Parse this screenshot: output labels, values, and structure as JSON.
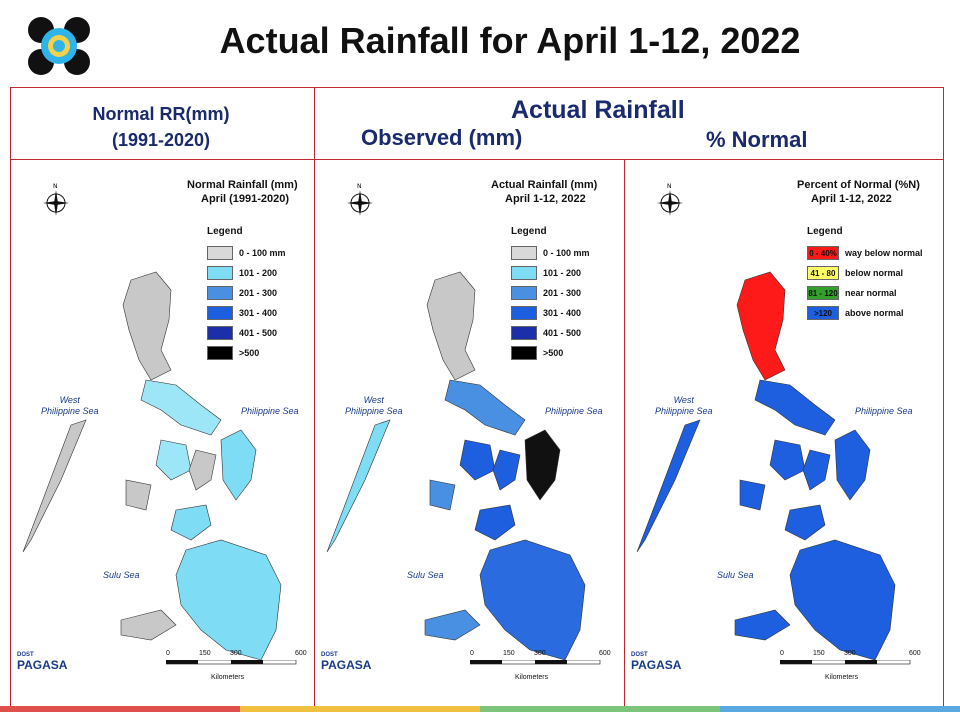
{
  "title": "Actual Rainfall for April 1-12, 2022",
  "headers": {
    "normal_line1": "Normal RR(mm)",
    "normal_line2": "(1991-2020)",
    "actual": "Actual Rainfall",
    "observed": "Observed (mm)",
    "percent": "% Normal"
  },
  "panels": [
    {
      "title_line1": "Normal Rainfall (mm)",
      "title_line2": "April (1991-2020)",
      "legend_title": "Legend",
      "legend": [
        {
          "label": "0 - 100 mm",
          "color": "#d9d9d9"
        },
        {
          "label": "101 - 200",
          "color": "#7fdcf5"
        },
        {
          "label": "201 - 300",
          "color": "#4a90e2"
        },
        {
          "label": "301 - 400",
          "color": "#1e5fe0"
        },
        {
          "label": "401 - 500",
          "color": "#1a2fa8"
        },
        {
          "label": ">500",
          "color": "#000000"
        }
      ],
      "sea_west": "West\nPhilippine Sea",
      "sea_east": "Philippine Sea",
      "sea_south": "Sulu Sea"
    },
    {
      "title_line1": "Actual Rainfall (mm)",
      "title_line2": "April 1-12, 2022",
      "legend_title": "Legend",
      "legend": [
        {
          "label": "0 - 100 mm",
          "color": "#d9d9d9"
        },
        {
          "label": "101 - 200",
          "color": "#7fdcf5"
        },
        {
          "label": "201 - 300",
          "color": "#4a90e2"
        },
        {
          "label": "301 - 400",
          "color": "#1e5fe0"
        },
        {
          "label": "401 - 500",
          "color": "#1a2fa8"
        },
        {
          "label": ">500",
          "color": "#000000"
        }
      ],
      "sea_west": "West\nPhilippine Sea",
      "sea_east": "Philippine Sea",
      "sea_south": "Sulu Sea"
    },
    {
      "title_line1": "Percent of Normal (%N)",
      "title_line2": "April 1-12, 2022",
      "legend_title": "Legend",
      "legend": [
        {
          "swatch": "0 - 40%",
          "label": "way below normal",
          "color": "#ff1a1a"
        },
        {
          "swatch": "41 - 80",
          "label": "below normal",
          "color": "#ffff66"
        },
        {
          "swatch": "81 - 120",
          "label": "near normal",
          "color": "#33a02c"
        },
        {
          "swatch": ">120",
          "label": "above normal",
          "color": "#1e5fe0"
        }
      ],
      "sea_west": "West\nPhilippine Sea",
      "sea_east": "Philippine Sea",
      "sea_south": "Sulu Sea"
    }
  ],
  "scale": {
    "ticks": [
      "0",
      "150",
      "300",
      "600"
    ],
    "unit": "Kilometers"
  },
  "branding": {
    "dost": "DOST",
    "name": "PAGASA"
  },
  "bottom_colors": [
    "#e0504a",
    "#f0c040",
    "#7cc47a",
    "#5aa8e0"
  ]
}
